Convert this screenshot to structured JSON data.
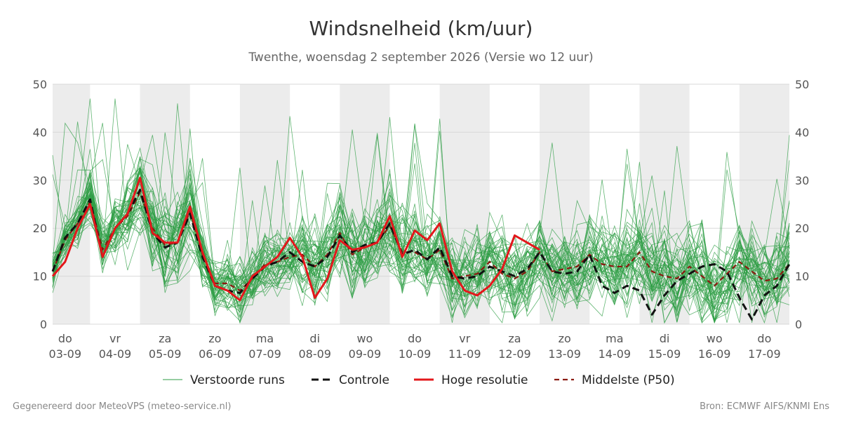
{
  "header": {
    "title": "Windsnelheid (km/uur)",
    "subtitle": "Twenthe, woensdag  2 september 2026 (Versie wo 12 uur)"
  },
  "footer": {
    "left": "Gegenereerd door MeteoVPS (meteo-service.nl)",
    "right": "Bron: ECMWF AIFS/KNMI Ens"
  },
  "chart_data": {
    "type": "line",
    "title": "Windsnelheid (km/uur)",
    "subtitle": "Twenthe, woensdag  2 september 2026 (Versie wo 12 uur)",
    "ylim": [
      0,
      50
    ],
    "yticks": [
      0,
      10,
      20,
      30,
      40,
      50
    ],
    "xlim": [
      -0.25,
      14.5
    ],
    "grid": true,
    "legend_position": "bottom",
    "x_ticks": [
      {
        "day": "do",
        "date": "03-09",
        "pos": 0
      },
      {
        "day": "vr",
        "date": "04-09",
        "pos": 1
      },
      {
        "day": "za",
        "date": "05-09",
        "pos": 2
      },
      {
        "day": "zo",
        "date": "06-09",
        "pos": 3
      },
      {
        "day": "ma",
        "date": "07-09",
        "pos": 4
      },
      {
        "day": "di",
        "date": "08-09",
        "pos": 5
      },
      {
        "day": "wo",
        "date": "09-09",
        "pos": 6
      },
      {
        "day": "do",
        "date": "10-09",
        "pos": 7
      },
      {
        "day": "vr",
        "date": "11-09",
        "pos": 8
      },
      {
        "day": "za",
        "date": "12-09",
        "pos": 9
      },
      {
        "day": "zo",
        "date": "13-09",
        "pos": 10
      },
      {
        "day": "ma",
        "date": "14-09",
        "pos": 11
      },
      {
        "day": "di",
        "date": "15-09",
        "pos": 12
      },
      {
        "day": "wo",
        "date": "16-09",
        "pos": 13
      },
      {
        "day": "do",
        "date": "17-09",
        "pos": 14
      }
    ],
    "shaded_days": [
      0,
      2,
      4,
      6,
      8,
      10,
      12,
      14
    ],
    "colors": {
      "ensemble": "#2e9e44",
      "control": "#111111",
      "hires": "#e3171b",
      "median": "#8b1a10",
      "shade": "#ececec",
      "grid": "#d9d9d9"
    },
    "legend": [
      {
        "key": "ensemble",
        "label": "Verstoorde runs"
      },
      {
        "key": "control",
        "label": "Controle"
      },
      {
        "key": "hires",
        "label": "Hoge resolutie"
      },
      {
        "key": "median",
        "label": "Middelste (P50)"
      }
    ],
    "time_step": 0.25,
    "time_start": -0.25,
    "series": [
      {
        "name": "Hoge resolutie",
        "key": "hires",
        "values": [
          10,
          13,
          20,
          25,
          14,
          20,
          23,
          30.5,
          19,
          17,
          17,
          24.5,
          15,
          8,
          7,
          5,
          10,
          12,
          14,
          18,
          14,
          5.5,
          9.5,
          17.5,
          15.5,
          16,
          17,
          22.5,
          14,
          19.5,
          17.5,
          21,
          11,
          7,
          6,
          8,
          11.5,
          18.5,
          17,
          15.5
        ]
      },
      {
        "name": "Controle",
        "key": "control",
        "values": [
          11,
          18,
          21,
          26,
          14,
          20,
          23,
          28,
          19,
          16,
          17,
          23,
          14,
          8,
          7,
          6.5,
          9.5,
          12,
          13,
          15,
          13,
          12,
          14,
          18.5,
          15,
          16.5,
          17,
          21,
          14.5,
          15.5,
          13.5,
          16,
          10,
          9.5,
          10,
          12,
          11,
          10,
          11.5,
          15,
          11,
          10.5,
          11,
          14.5,
          8,
          6.5,
          8,
          7,
          2,
          6,
          9,
          10.5,
          12,
          12.5,
          11,
          5.5,
          1,
          6,
          8,
          12.5
        ]
      },
      {
        "name": "Middelste (P50)",
        "key": "median",
        "values": [
          11,
          17.5,
          21,
          25.5,
          15.5,
          20,
          22.5,
          27.5,
          20,
          16.5,
          17,
          23.5,
          14.5,
          8.5,
          8.5,
          7,
          9.5,
          12.5,
          13,
          14,
          14.5,
          12,
          14.5,
          19,
          14.5,
          16,
          17,
          20.5,
          15,
          15,
          13.5,
          15.5,
          9.5,
          10,
          10.5,
          13,
          10.5,
          9.5,
          11,
          15,
          11,
          11.5,
          12,
          14.5,
          12.5,
          12,
          12,
          15,
          11,
          10,
          9.5,
          12,
          10,
          8,
          10.5,
          13,
          11,
          9,
          9.5,
          12.5
        ]
      }
    ]
  }
}
